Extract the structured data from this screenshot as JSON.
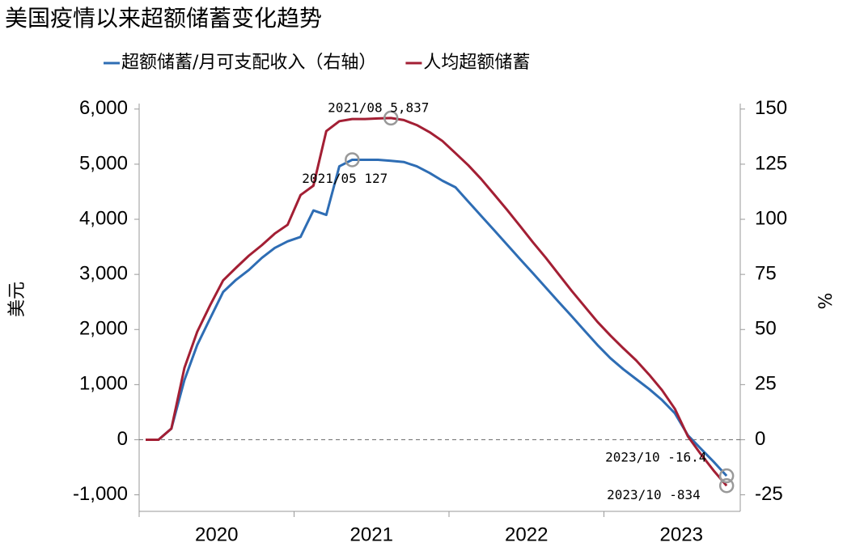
{
  "chart_data": {
    "type": "line",
    "title": "美国疫情以来超额储蓄变化趋势",
    "y_label": "美元",
    "y2_label": "%",
    "x": [
      2020.042,
      2020.125,
      2020.208,
      2020.292,
      2020.375,
      2020.458,
      2020.542,
      2020.625,
      2020.708,
      2020.792,
      2020.875,
      2020.958,
      2021.042,
      2021.125,
      2021.208,
      2021.292,
      2021.375,
      2021.458,
      2021.542,
      2021.625,
      2021.708,
      2021.792,
      2021.875,
      2021.958,
      2022.042,
      2022.125,
      2022.208,
      2022.292,
      2022.375,
      2022.458,
      2022.542,
      2022.625,
      2022.708,
      2022.792,
      2022.875,
      2022.958,
      2023.042,
      2023.125,
      2023.208,
      2023.292,
      2023.375,
      2023.458,
      2023.542,
      2023.625,
      2023.708,
      2023.792
    ],
    "series": [
      {
        "name": "超额储蓄/月可支配收入（右轴）",
        "color": "#2e6db4",
        "axis": "y2",
        "values": [
          0,
          0,
          5,
          27,
          43,
          55,
          67,
          72.5,
          77,
          82.5,
          87,
          90,
          92,
          104,
          102,
          124,
          127,
          127,
          127,
          126.5,
          126,
          124,
          121,
          117.5,
          114.5,
          108,
          101.5,
          95,
          88.5,
          82,
          75.5,
          69,
          62.5,
          56,
          49.5,
          43,
          37,
          32,
          27.5,
          23,
          18,
          12,
          2,
          -4,
          -10,
          -16.4
        ]
      },
      {
        "name": "人均超额储蓄",
        "color": "#a31f34",
        "values": [
          0,
          0,
          200,
          1300,
          1960,
          2440,
          2890,
          3120,
          3340,
          3530,
          3740,
          3900,
          4440,
          4610,
          5600,
          5780,
          5820,
          5820,
          5830,
          5837,
          5800,
          5710,
          5580,
          5420,
          5200,
          4980,
          4730,
          4450,
          4170,
          3880,
          3580,
          3300,
          3000,
          2700,
          2420,
          2140,
          1890,
          1660,
          1440,
          1180,
          900,
          560,
          60,
          -260,
          -560,
          -834
        ]
      }
    ],
    "annotations": [
      {
        "text": "2021/08 5,837",
        "x": 2021.625,
        "y": 5837,
        "axis": "y"
      },
      {
        "text": "2021/05 127",
        "x": 2021.375,
        "y": 127,
        "axis": "y2"
      },
      {
        "text": "2023/10 -16.4",
        "x": 2023.792,
        "y": -16.4,
        "axis": "y2"
      },
      {
        "text": "2023/10 -834",
        "x": 2023.792,
        "y": -834,
        "axis": "y"
      }
    ],
    "xlim": [
      2020,
      2023.88
    ],
    "xticks": [
      {
        "value": 2020.5,
        "label": "2020"
      },
      {
        "value": 2021.5,
        "label": "2021"
      },
      {
        "value": 2022.5,
        "label": "2022"
      },
      {
        "value": 2023.5,
        "label": "2023"
      }
    ],
    "ylim": [
      -1300,
      6100
    ],
    "yticks": [
      {
        "value": -1000,
        "label": "-1,000"
      },
      0,
      {
        "value": 1000,
        "label": "1,000"
      },
      {
        "value": 2000,
        "label": "2,000"
      },
      {
        "value": 3000,
        "label": "3,000"
      },
      {
        "value": 4000,
        "label": "4,000"
      },
      {
        "value": 5000,
        "label": "5,000"
      },
      {
        "value": 6000,
        "label": "6,000"
      }
    ],
    "y2lim": [
      -32.5,
      152.5
    ],
    "y2ticks": [
      -25,
      0,
      25,
      50,
      75,
      100,
      125,
      150
    ]
  }
}
